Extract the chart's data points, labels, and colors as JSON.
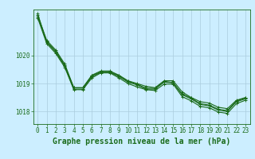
{
  "xlabel": "Graphe pression niveau de la mer (hPa)",
  "x_ticks": [
    0,
    1,
    2,
    3,
    4,
    5,
    6,
    7,
    8,
    9,
    10,
    11,
    12,
    13,
    14,
    15,
    16,
    17,
    18,
    19,
    20,
    21,
    22,
    23
  ],
  "ylim": [
    1017.55,
    1021.65
  ],
  "yticks": [
    1018,
    1019,
    1020
  ],
  "background_color": "#cceeff",
  "line_color": "#1a6b1a",
  "grid_color": "#aaccdd",
  "series": [
    [
      1021.45,
      1020.55,
      1020.2,
      1019.7,
      1018.85,
      1018.85,
      1019.3,
      1019.45,
      1019.45,
      1019.3,
      1019.1,
      1019.0,
      1018.9,
      1018.85,
      1019.1,
      1019.1,
      1018.7,
      1018.5,
      1018.35,
      1018.3,
      1018.15,
      1018.1,
      1018.4,
      1018.5
    ],
    [
      1021.4,
      1020.5,
      1020.15,
      1019.65,
      1018.85,
      1018.85,
      1019.28,
      1019.42,
      1019.42,
      1019.28,
      1019.08,
      1018.98,
      1018.83,
      1018.83,
      1019.08,
      1019.03,
      1018.63,
      1018.48,
      1018.28,
      1018.23,
      1018.08,
      1018.03,
      1018.38,
      1018.48
    ],
    [
      1021.5,
      1020.48,
      1020.13,
      1019.63,
      1018.8,
      1018.8,
      1019.25,
      1019.4,
      1019.4,
      1019.25,
      1019.05,
      1018.95,
      1018.8,
      1018.8,
      1019.05,
      1019.03,
      1018.6,
      1018.45,
      1018.25,
      1018.2,
      1018.05,
      1018.0,
      1018.35,
      1018.45
    ],
    [
      1021.35,
      1020.43,
      1020.08,
      1019.58,
      1018.78,
      1018.78,
      1019.2,
      1019.38,
      1019.38,
      1019.2,
      1019.0,
      1018.88,
      1018.78,
      1018.75,
      1018.98,
      1018.98,
      1018.53,
      1018.38,
      1018.18,
      1018.13,
      1017.98,
      1017.93,
      1018.28,
      1018.4
    ]
  ],
  "marker": "+",
  "marker_size": 3.5,
  "line_width": 0.8,
  "tick_fontsize": 5.5,
  "label_fontsize": 7.0
}
